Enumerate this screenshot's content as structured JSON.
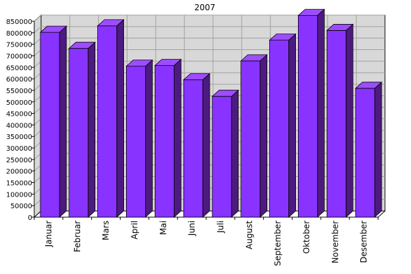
{
  "chart_data": {
    "type": "bar",
    "title": "2007",
    "xlabel": "",
    "ylabel": "",
    "categories": [
      "Januar",
      "Februar",
      "Mars",
      "April",
      "Mai",
      "Juni",
      "Juli",
      "August",
      "September",
      "Oktober",
      "November",
      "Desember"
    ],
    "series": [
      {
        "values": [
          802000,
          732000,
          830000,
          655000,
          658000,
          596000,
          524000,
          678000,
          768000,
          875000,
          810000,
          559000
        ]
      }
    ],
    "ylim": [
      0,
      850000
    ],
    "yticks": [
      "0",
      "50000",
      "100000",
      "150000",
      "200000",
      "250000",
      "300000",
      "350000",
      "400000",
      "450000",
      "500000",
      "550000",
      "600000",
      "650000",
      "700000",
      "750000",
      "800000",
      "850000"
    ],
    "grid": true,
    "legend": "none",
    "colors": {
      "bar_front": "#8833ff",
      "bar_top": "#9d4dff",
      "bar_side": "#4d1a80",
      "back_wall": "#d8d8d8",
      "floor": "#ffffff"
    }
  }
}
